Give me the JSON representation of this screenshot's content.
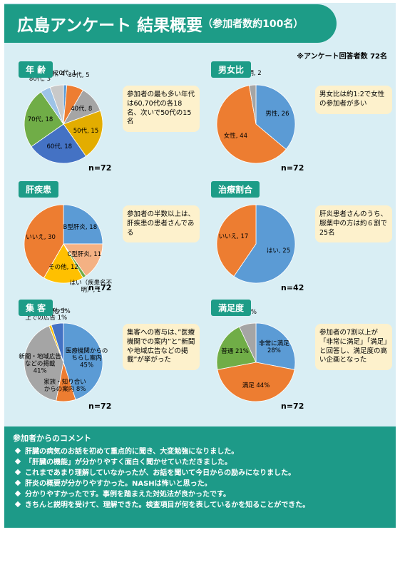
{
  "header": {
    "title": "広島アンケート 結果概要",
    "subtitle": "（参加者数約100名）"
  },
  "note": "※アンケート回答者数 72名",
  "chart_data": [
    {
      "type": "pie",
      "title": "年 齢",
      "labels": [
        "20代, 1",
        "30代, 5",
        "40代, 8",
        "50代, 15",
        "60代, 18",
        "70代, 18",
        "80代, 3",
        "不明, 4"
      ],
      "values": [
        1,
        5,
        8,
        15,
        18,
        18,
        3,
        4
      ],
      "colors": [
        "#5b9bd5",
        "#ed7d31",
        "#a5a5a5",
        "#e3ad00",
        "#4472c4",
        "#70ad47",
        "#9dc3e6",
        "#c9c9c9"
      ],
      "n": "n=72",
      "annotation": "参加者の最も多い年代は60,70代の各18名、次いで50代の15名"
    },
    {
      "type": "pie",
      "title": "男女比",
      "labels": [
        "男性, 26",
        "女性, 44",
        "不明, 2"
      ],
      "values": [
        26,
        44,
        2
      ],
      "colors": [
        "#5b9bd5",
        "#ed7d31",
        "#a5a5a5"
      ],
      "n": "n=72",
      "annotation": "男女比は約1:2で女性の参加者が多い"
    },
    {
      "type": "pie",
      "title": "肝疾患",
      "labels": [
        "B型肝炎, 18",
        "C型肝炎, 11",
        "はい（疾患名不明）, 1",
        "その他, 12",
        "いいえ, 30"
      ],
      "values": [
        18,
        11,
        1,
        12,
        30
      ],
      "colors": [
        "#5b9bd5",
        "#f4b183",
        "#70ad47",
        "#ffc000",
        "#ed7d31"
      ],
      "n": "n=72",
      "annotation": "参加者の半数以上は、肝疾患の患者さんである"
    },
    {
      "type": "pie",
      "title": "治療割合",
      "labels": [
        "はい, 25",
        "いいえ, 17"
      ],
      "values": [
        25,
        17
      ],
      "colors": [
        "#5b9bd5",
        "#ed7d31"
      ],
      "n": "n=42",
      "annotation": "肝炎患者さんのうち、服薬中の方は約６割で25名"
    },
    {
      "type": "pie",
      "title": "集 客",
      "labels": [
        "医療機関からのちらし案内 45%",
        "家族・知り合いからの案内 8%",
        "新聞・地域広告などの掲載 41%",
        "インターネット上での広告 1%",
        "その他 5%"
      ],
      "values": [
        45,
        8,
        41,
        1,
        5
      ],
      "colors": [
        "#5b9bd5",
        "#ed7d31",
        "#a5a5a5",
        "#ffc000",
        "#4472c4"
      ],
      "n": "n=72",
      "annotation": "集客への寄与は、”医療機関での案内”と”新聞や地域広告などの掲載”が挙がった"
    },
    {
      "type": "pie",
      "title": "満足度",
      "labels": [
        "非常に満足 28%",
        "満足 44%",
        "普通 21%",
        "不明 7%"
      ],
      "values": [
        28,
        44,
        21,
        7
      ],
      "colors": [
        "#5b9bd5",
        "#ed7d31",
        "#70ad47",
        "#a5a5a5"
      ],
      "n": "n=72",
      "annotation": "参加者の7割以上が「非常に満足」「満足」と回答し、満足度の高い企画となった"
    }
  ],
  "comments": {
    "title": "参加者からのコメント",
    "items": [
      "肝臓の病気のお話を初めて重点的に聞き、大変勉強になりました。",
      "「肝臓の機能」が分かりやすく面白く聞かせていただきました。",
      "これまであまり理解していなかったが、お話を聞いて今日からの励みになりました。",
      "肝炎の概要が分かりやすかった。NASHは怖いと思った。",
      "分かりやすかったです。事例を踏まえた対処法が良かったです。",
      "きちんと説明を受けて、理解できた。検査項目が何を表しているかを知ることができた。"
    ]
  }
}
